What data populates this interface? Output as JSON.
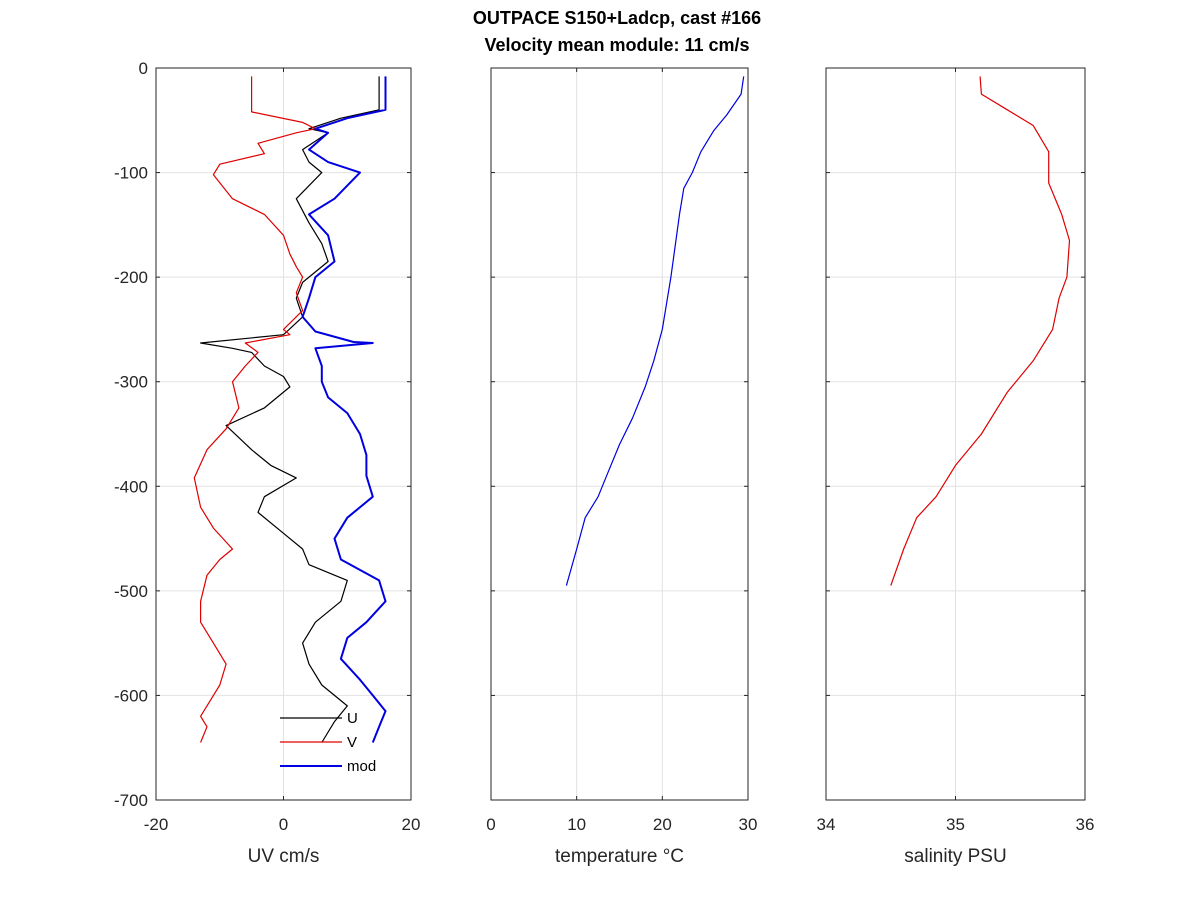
{
  "title_line1": "OUTPACE S150+Ladcp, cast #166",
  "title_line2": "Velocity mean module:  11 cm/s",
  "chart_data": [
    {
      "type": "line",
      "xlabel": "UV cm/s",
      "ylabel": "",
      "xlim": [
        -20,
        20
      ],
      "ylim": [
        -700,
        0
      ],
      "xticks": [
        -20,
        0,
        20
      ],
      "yticks": [
        0,
        -100,
        -200,
        -300,
        -400,
        -500,
        -600,
        -700
      ],
      "ytick_labels": [
        "0",
        "-100",
        "-200",
        "-300",
        "-400",
        "-500",
        "-600",
        "-700"
      ],
      "grid": true,
      "legend_position": "bottom-right",
      "series": [
        {
          "name": "U",
          "color": "#000000",
          "points": [
            [
              15,
              -8
            ],
            [
              15,
              -40
            ],
            [
              9,
              -48
            ],
            [
              4,
              -58
            ],
            [
              7,
              -62
            ],
            [
              3,
              -78
            ],
            [
              4,
              -90
            ],
            [
              6,
              -100
            ],
            [
              2,
              -125
            ],
            [
              4,
              -148
            ],
            [
              6,
              -168
            ],
            [
              7,
              -185
            ],
            [
              3,
              -205
            ],
            [
              2,
              -220
            ],
            [
              3,
              -238
            ],
            [
              0,
              -255
            ],
            [
              -13,
              -263
            ],
            [
              -8,
              -268
            ],
            [
              -5,
              -272
            ],
            [
              -3,
              -285
            ],
            [
              0,
              -295
            ],
            [
              1,
              -305
            ],
            [
              -3,
              -325
            ],
            [
              -9,
              -342
            ],
            [
              -5,
              -365
            ],
            [
              -2,
              -380
            ],
            [
              2,
              -392
            ],
            [
              -3,
              -410
            ],
            [
              -4,
              -425
            ],
            [
              0,
              -445
            ],
            [
              3,
              -460
            ],
            [
              4,
              -475
            ],
            [
              10,
              -490
            ],
            [
              9,
              -510
            ],
            [
              5,
              -530
            ],
            [
              3,
              -550
            ],
            [
              4,
              -570
            ],
            [
              6,
              -590
            ],
            [
              10,
              -610
            ],
            [
              8,
              -625
            ],
            [
              6,
              -645
            ]
          ]
        },
        {
          "name": "V",
          "color": "#e00000",
          "points": [
            [
              -5,
              -8
            ],
            [
              -5,
              -42
            ],
            [
              3,
              -52
            ],
            [
              5,
              -58
            ],
            [
              2,
              -62
            ],
            [
              -4,
              -72
            ],
            [
              -3,
              -82
            ],
            [
              -10,
              -92
            ],
            [
              -11,
              -102
            ],
            [
              -8,
              -125
            ],
            [
              -3,
              -140
            ],
            [
              0,
              -160
            ],
            [
              1,
              -178
            ],
            [
              2,
              -190
            ],
            [
              3,
              -200
            ],
            [
              2,
              -215
            ],
            [
              3,
              -232
            ],
            [
              0,
              -250
            ],
            [
              1,
              -255
            ],
            [
              -6,
              -263
            ],
            [
              -4,
              -272
            ],
            [
              -6,
              -285
            ],
            [
              -8,
              -300
            ],
            [
              -7,
              -325
            ],
            [
              -9,
              -345
            ],
            [
              -12,
              -365
            ],
            [
              -14,
              -392
            ],
            [
              -13,
              -420
            ],
            [
              -11,
              -440
            ],
            [
              -8,
              -460
            ],
            [
              -10,
              -470
            ],
            [
              -12,
              -485
            ],
            [
              -13,
              -510
            ],
            [
              -13,
              -530
            ],
            [
              -11,
              -550
            ],
            [
              -9,
              -570
            ],
            [
              -10,
              -590
            ],
            [
              -11,
              -600
            ],
            [
              -13,
              -620
            ],
            [
              -12,
              -630
            ],
            [
              -13,
              -645
            ]
          ]
        },
        {
          "name": "mod",
          "color": "#0000e0",
          "points": [
            [
              16,
              -8
            ],
            [
              16,
              -40
            ],
            [
              10,
              -48
            ],
            [
              5,
              -58
            ],
            [
              7,
              -62
            ],
            [
              4,
              -78
            ],
            [
              7,
              -90
            ],
            [
              12,
              -100
            ],
            [
              8,
              -125
            ],
            [
              4,
              -140
            ],
            [
              7,
              -160
            ],
            [
              8,
              -185
            ],
            [
              5,
              -200
            ],
            [
              4,
              -220
            ],
            [
              3,
              -238
            ],
            [
              5,
              -252
            ],
            [
              11,
              -262
            ],
            [
              14,
              -263
            ],
            [
              5,
              -268
            ],
            [
              6,
              -285
            ],
            [
              6,
              -300
            ],
            [
              7,
              -315
            ],
            [
              10,
              -330
            ],
            [
              12,
              -350
            ],
            [
              13,
              -370
            ],
            [
              13,
              -390
            ],
            [
              14,
              -410
            ],
            [
              10,
              -430
            ],
            [
              8,
              -450
            ],
            [
              9,
              -470
            ],
            [
              15,
              -490
            ],
            [
              16,
              -510
            ],
            [
              13,
              -530
            ],
            [
              10,
              -545
            ],
            [
              9,
              -565
            ],
            [
              12,
              -585
            ],
            [
              14,
              -600
            ],
            [
              16,
              -615
            ],
            [
              15,
              -630
            ],
            [
              14,
              -645
            ]
          ]
        }
      ]
    },
    {
      "type": "line",
      "xlabel": "temperature °C",
      "xlim": [
        0,
        30
      ],
      "ylim": [
        -700,
        0
      ],
      "xticks": [
        0,
        10,
        20,
        30
      ],
      "grid": true,
      "series": [
        {
          "name": "",
          "color": "#0000e0",
          "points": [
            [
              29.5,
              -8
            ],
            [
              29.2,
              -25
            ],
            [
              27.5,
              -45
            ],
            [
              26,
              -60
            ],
            [
              24.5,
              -80
            ],
            [
              23.5,
              -100
            ],
            [
              22.5,
              -115
            ],
            [
              22,
              -140
            ],
            [
              21.5,
              -170
            ],
            [
              21,
              -200
            ],
            [
              20.5,
              -225
            ],
            [
              20,
              -250
            ],
            [
              19,
              -280
            ],
            [
              18,
              -305
            ],
            [
              16.5,
              -335
            ],
            [
              15,
              -360
            ],
            [
              13.5,
              -390
            ],
            [
              12.5,
              -410
            ],
            [
              11,
              -430
            ],
            [
              10,
              -460
            ],
            [
              8.8,
              -495
            ]
          ]
        }
      ]
    },
    {
      "type": "line",
      "xlabel": "salinity PSU",
      "xlim": [
        34,
        36
      ],
      "ylim": [
        -700,
        0
      ],
      "xticks": [
        34,
        35,
        36
      ],
      "grid": true,
      "series": [
        {
          "name": "",
          "color": "#e00000",
          "points": [
            [
              35.19,
              -8
            ],
            [
              35.2,
              -25
            ],
            [
              35.4,
              -40
            ],
            [
              35.6,
              -55
            ],
            [
              35.72,
              -80
            ],
            [
              35.72,
              -110
            ],
            [
              35.82,
              -140
            ],
            [
              35.88,
              -165
            ],
            [
              35.86,
              -200
            ],
            [
              35.8,
              -220
            ],
            [
              35.75,
              -250
            ],
            [
              35.6,
              -280
            ],
            [
              35.4,
              -310
            ],
            [
              35.2,
              -350
            ],
            [
              35.0,
              -380
            ],
            [
              34.85,
              -410
            ],
            [
              34.7,
              -430
            ],
            [
              34.6,
              -460
            ],
            [
              34.5,
              -495
            ]
          ]
        }
      ]
    }
  ]
}
